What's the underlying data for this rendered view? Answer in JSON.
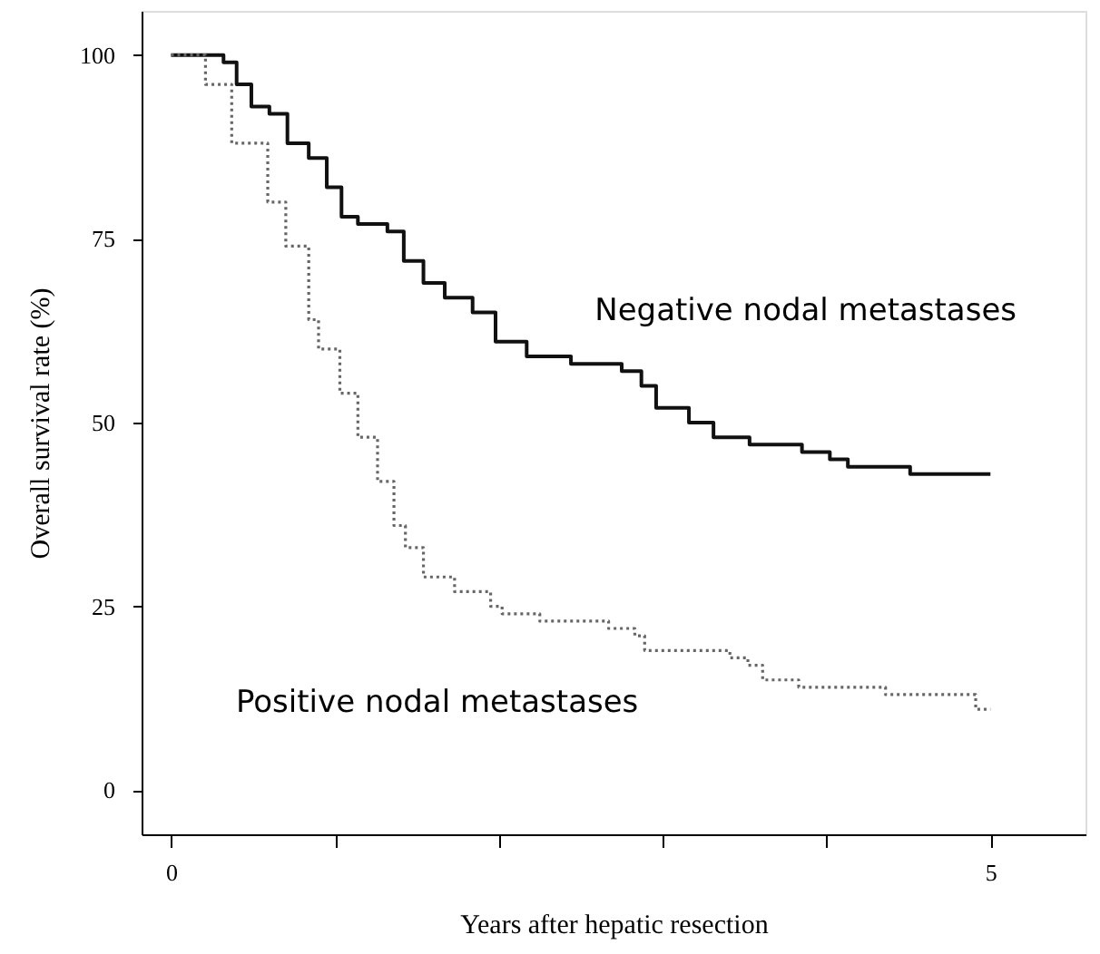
{
  "chart_data": {
    "type": "step",
    "xlabel": "Years after hepatic resection",
    "ylabel": "Overall survival rate (%)",
    "xlim": [
      -0.18,
      5.58
    ],
    "ylim": [
      -6,
      106
    ],
    "xticks": [
      0,
      {
        "value": 1,
        "label": null
      },
      {
        "value": 2,
        "label": null
      },
      {
        "value": 3,
        "label": null
      },
      {
        "value": 4,
        "label": null
      },
      5
    ],
    "yticks": [
      0,
      25,
      50,
      75,
      100
    ],
    "grid": false,
    "series": [
      {
        "name": "Negative nodal metastases",
        "color": "#111111",
        "line_style": "solid",
        "x": [
          0,
          0.32,
          0.4,
          0.49,
          0.6,
          0.71,
          0.84,
          0.95,
          1.04,
          1.14,
          1.32,
          1.42,
          1.54,
          1.67,
          1.84,
          1.98,
          2.17,
          2.44,
          2.75,
          2.87,
          2.96,
          3.16,
          3.31,
          3.53,
          3.85,
          4.02,
          4.13,
          4.51,
          5.0
        ],
        "values": [
          100,
          99,
          96,
          93,
          92,
          88,
          86,
          82,
          78,
          77,
          76,
          72,
          69,
          67,
          65,
          61,
          59,
          58,
          57,
          55,
          52,
          50,
          48,
          47,
          46,
          45,
          44,
          43,
          43
        ]
      },
      {
        "name": "Positive nodal metastases",
        "color": "#666666",
        "line_style": "dotted",
        "x": [
          0,
          0.21,
          0.37,
          0.59,
          0.7,
          0.84,
          0.9,
          1.03,
          1.14,
          1.26,
          1.36,
          1.43,
          1.54,
          1.73,
          1.95,
          2.02,
          2.25,
          2.67,
          2.83,
          2.89,
          3.41,
          3.52,
          3.61,
          3.83,
          4.36,
          4.91,
          5.0
        ],
        "values": [
          100,
          96,
          88,
          80,
          74,
          64,
          60,
          54,
          48,
          42,
          36,
          33,
          29,
          27,
          25,
          24,
          23,
          22,
          21,
          19,
          18,
          17,
          15,
          14,
          13,
          11,
          11
        ]
      }
    ]
  }
}
